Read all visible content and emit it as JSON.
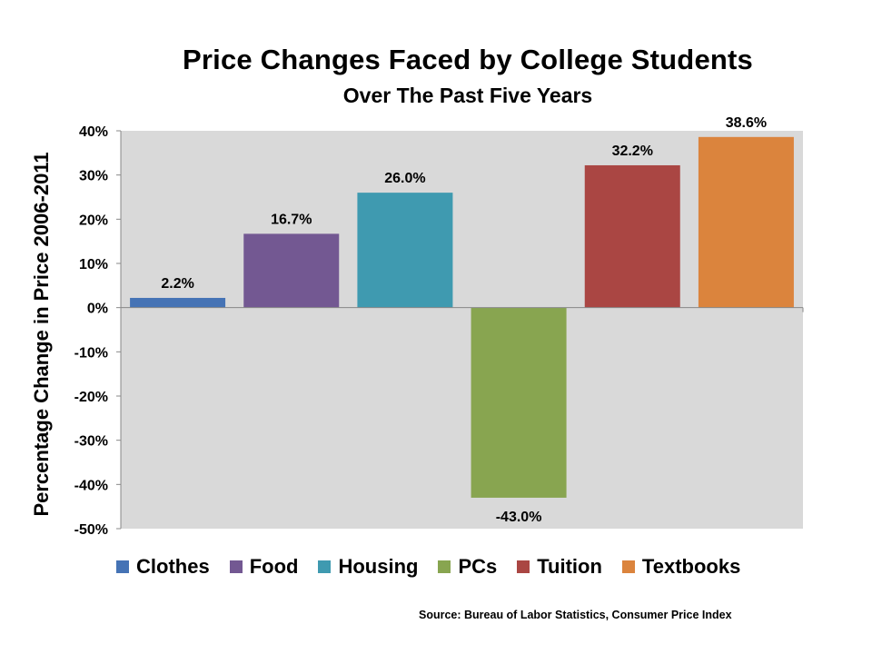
{
  "chart_data": {
    "type": "bar",
    "title": "Price Changes Faced by College Students",
    "subtitle": "Over The Past Five Years",
    "ylabel": "Percentage Change in Price  2006-2011",
    "xlabel": "",
    "categories": [
      "Clothes",
      "Food",
      "Housing",
      "PCs",
      "Tuition",
      "Textbooks"
    ],
    "values": [
      2.2,
      16.7,
      26.0,
      -43.0,
      32.2,
      38.6
    ],
    "data_labels": [
      "2.2%",
      "16.7%",
      "26.0%",
      "-43.0%",
      "32.2%",
      "38.6%"
    ],
    "colors": [
      "#4573B5",
      "#735892",
      "#3F9AB0",
      "#88A550",
      "#AA4643",
      "#DB843D"
    ],
    "ylim": [
      -50,
      40
    ],
    "yticks": [
      40,
      30,
      20,
      10,
      0,
      -10,
      -20,
      -30,
      -40,
      -50
    ],
    "ytick_labels": [
      "40%",
      "30%",
      "20%",
      "10%",
      "0%",
      "-10%",
      "-20%",
      "-30%",
      "-40%",
      "-50%"
    ],
    "plot_background": "#D9D9D9",
    "grid": false,
    "legend_position": "bottom"
  },
  "source": "Source: Bureau of Labor Statistics, Consumer Price Index"
}
